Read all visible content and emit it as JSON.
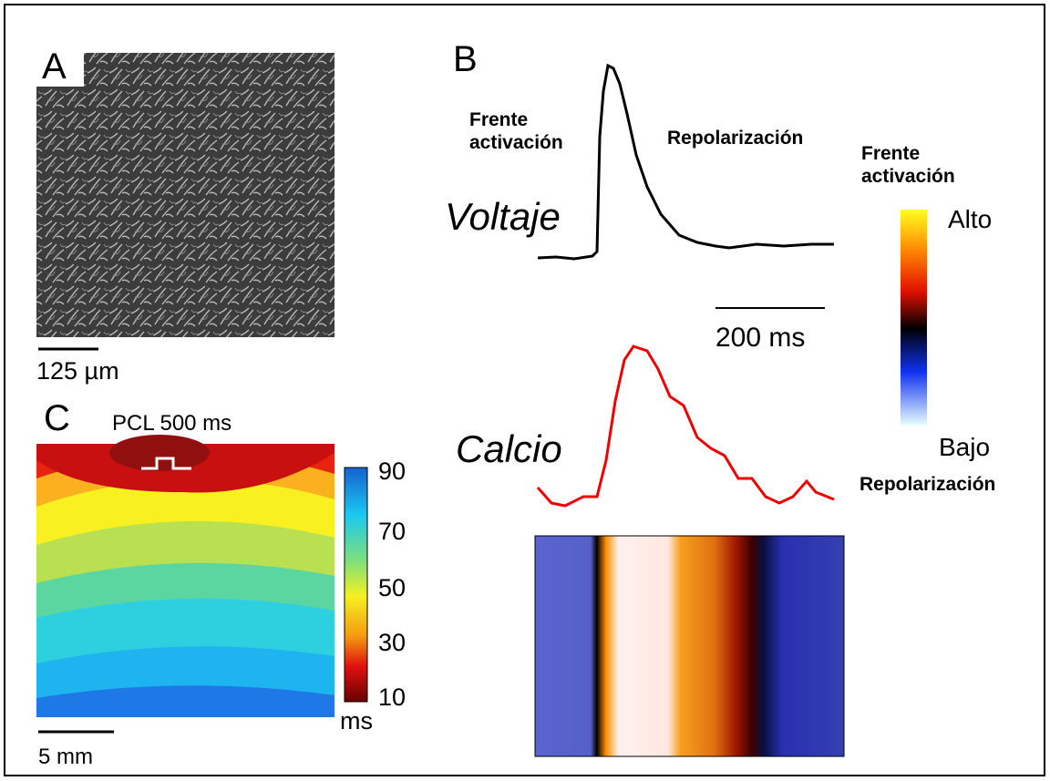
{
  "panel_a": {
    "label": "A",
    "scale_bar": "125 µm"
  },
  "panel_b": {
    "label": "B",
    "front_label": "Frente\nactivación",
    "repol_label": "Repolarización",
    "voltage_label": "Voltaje",
    "calcium_label": "Calcio",
    "time_scale": "200 ms",
    "colorbar": {
      "top_caption": "Frente\nactivación",
      "high": "Alto",
      "low": "Bajo",
      "bottom_caption": "Repolarización"
    }
  },
  "panel_c": {
    "label": "C",
    "title": "PCL 500 ms",
    "colorbar_ticks": [
      "90",
      "70",
      "50",
      "30",
      "10"
    ],
    "unit": "ms",
    "scale_bar": "5 mm"
  }
}
